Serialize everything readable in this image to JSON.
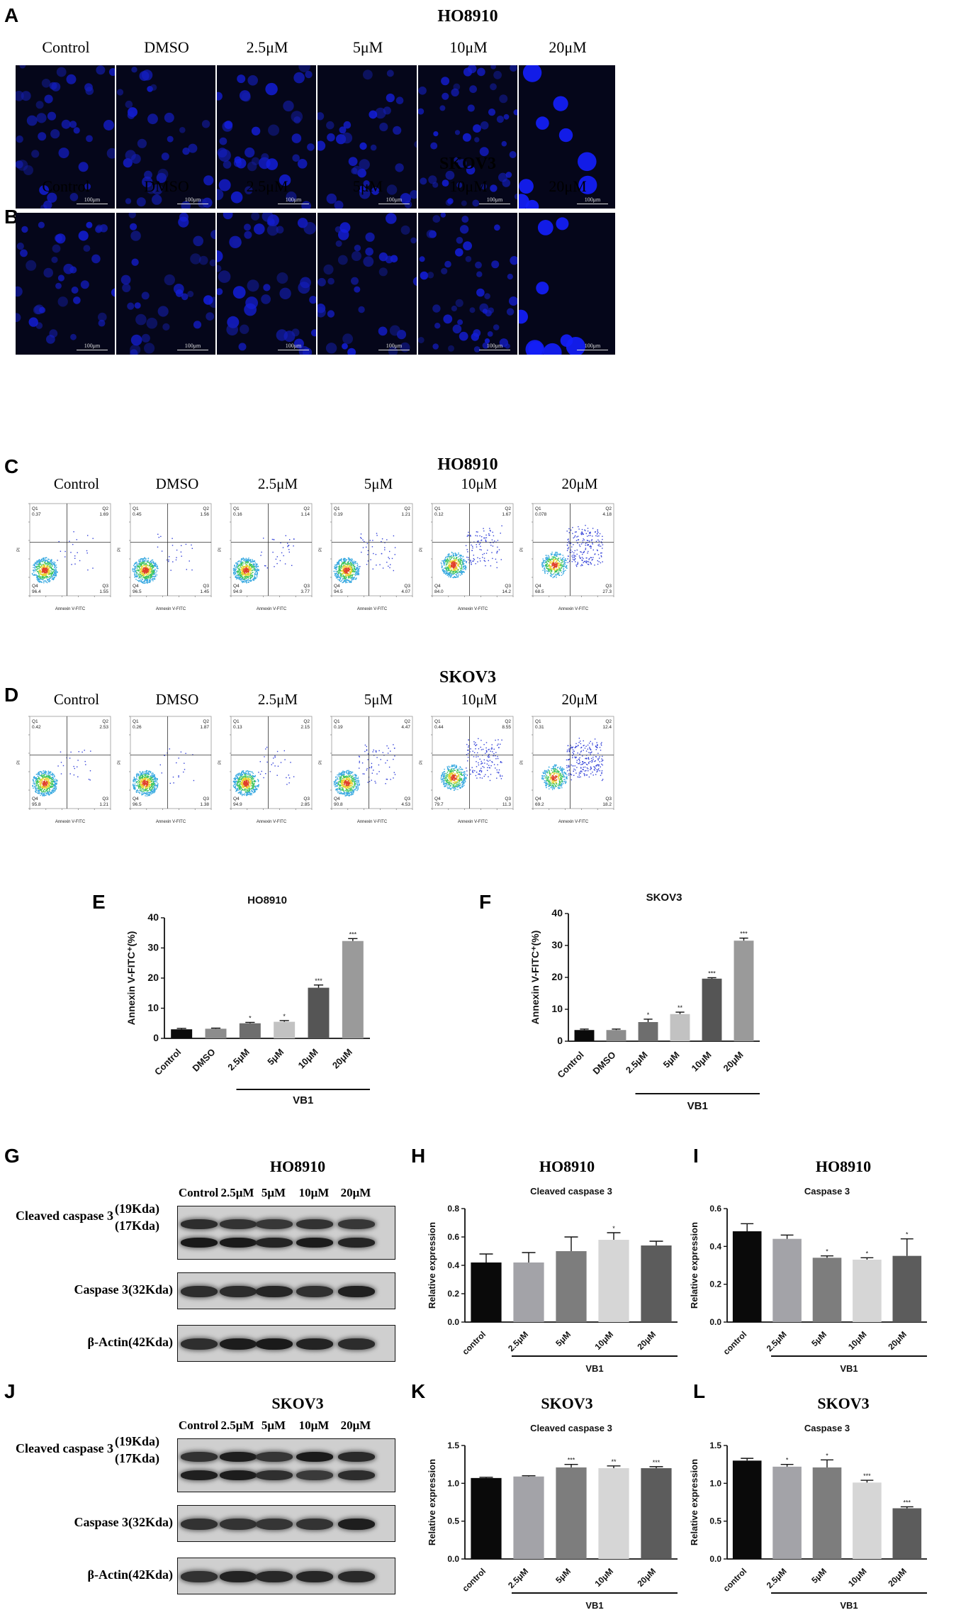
{
  "panels": {
    "A": {
      "letter": "A",
      "cell": "HO8910"
    },
    "B": {
      "letter": "B",
      "cell": "SKOV3"
    },
    "C": {
      "letter": "C",
      "cell": "HO8910"
    },
    "D": {
      "letter": "D",
      "cell": "SKOV3"
    },
    "E": {
      "letter": "E"
    },
    "F": {
      "letter": "F"
    },
    "G": {
      "letter": "G",
      "cell": "HO8910"
    },
    "H": {
      "letter": "H",
      "cell": "HO8910"
    },
    "I": {
      "letter": "I",
      "cell": "HO8910"
    },
    "J": {
      "letter": "J",
      "cell": "SKOV3"
    },
    "K": {
      "letter": "K",
      "cell": "SKOV3"
    },
    "L": {
      "letter": "L",
      "cell": "SKOV3"
    }
  },
  "conditions": [
    "Control",
    "DMSO",
    "2.5μM",
    "5μM",
    "10μM",
    "20μM"
  ],
  "scale_bar": "100μm",
  "flow": {
    "x_axis": "Annexin V-FITC",
    "y_axis": "PI",
    "quadrants": [
      "Q1",
      "Q2",
      "Q3",
      "Q4"
    ],
    "ho8910": [
      {
        "q1": "0.37",
        "q2": "1.69",
        "q3": "1.55",
        "q4": "96.4"
      },
      {
        "q1": "0.45",
        "q2": "1.56",
        "q3": "1.45",
        "q4": "96.5"
      },
      {
        "q1": "0.16",
        "q2": "1.14",
        "q3": "3.77",
        "q4": "94.9"
      },
      {
        "q1": "0.19",
        "q2": "1.21",
        "q3": "4.07",
        "q4": "94.5"
      },
      {
        "q1": "0.12",
        "q2": "1.67",
        "q3": "14.2",
        "q4": "84.0"
      },
      {
        "q1": "0.078",
        "q2": "4.18",
        "q3": "27.3",
        "q4": "68.5"
      }
    ],
    "skov3": [
      {
        "q1": "0.42",
        "q2": "2.53",
        "q3": "1.21",
        "q4": "95.8"
      },
      {
        "q1": "0.26",
        "q2": "1.87",
        "q3": "1.38",
        "q4": "96.5"
      },
      {
        "q1": "0.13",
        "q2": "2.15",
        "q3": "2.85",
        "q4": "94.9"
      },
      {
        "q1": "0.19",
        "q2": "4.47",
        "q3": "4.53",
        "q4": "90.8"
      },
      {
        "q1": "0.44",
        "q2": "8.55",
        "q3": "11.3",
        "q4": "79.7"
      },
      {
        "q1": "0.31",
        "q2": "12.4",
        "q3": "18.2",
        "q4": "69.2"
      }
    ]
  },
  "western": {
    "ho8910_lanes": [
      "Control",
      "2.5μM",
      "5μM",
      "10μM",
      "20μM"
    ],
    "skov3_lanes": [
      "Control",
      "2.5μM",
      "5μM",
      "10μM",
      "20μM"
    ],
    "rows": [
      {
        "label": "Cleaved caspase 3",
        "sub1": "(19Kda)",
        "sub2": "(17Kda)"
      },
      {
        "label": "Caspase 3(32Kda)"
      },
      {
        "label": "β-Actin(42Kda)"
      }
    ]
  },
  "chart_data": [
    {
      "panel": "E",
      "type": "bar",
      "title": "HO8910",
      "ylabel": "Annexin V-FITC⁺(%)",
      "ylim": [
        0,
        40
      ],
      "yticks": [
        0,
        10,
        20,
        30,
        40
      ],
      "categories": [
        "Control",
        "DMSO",
        "2.5μM",
        "5μM",
        "10μM",
        "20μM"
      ],
      "values": [
        3,
        3.2,
        5,
        5.5,
        16.8,
        32.3
      ],
      "errors": [
        0.3,
        0.2,
        0.3,
        0.4,
        0.9,
        0.8
      ],
      "significance": [
        "",
        "",
        "*",
        "*",
        "***",
        "***"
      ],
      "group_label": "VB1",
      "group_from": 2,
      "colors": [
        "#0a0a0a",
        "#8c8c8c",
        "#6e6e6e",
        "#c2c2c2",
        "#555555",
        "#9a9a9a"
      ]
    },
    {
      "panel": "F",
      "type": "bar",
      "title": "SKOV3",
      "ylabel": "Annexin V-FITC⁺(%)",
      "ylim": [
        0,
        40
      ],
      "yticks": [
        0,
        10,
        20,
        30,
        40
      ],
      "categories": [
        "Control",
        "DMSO",
        "2.5μM",
        "5μM",
        "10μM",
        "20μM"
      ],
      "values": [
        3.5,
        3.5,
        6,
        8.5,
        19.6,
        31.5
      ],
      "errors": [
        0.3,
        0.3,
        0.9,
        0.6,
        0.3,
        0.8
      ],
      "significance": [
        "",
        "",
        "*",
        "**",
        "***",
        "***"
      ],
      "group_label": "VB1",
      "group_from": 2,
      "colors": [
        "#0a0a0a",
        "#8c8c8c",
        "#6e6e6e",
        "#c2c2c2",
        "#555555",
        "#9a9a9a"
      ]
    },
    {
      "panel": "H",
      "type": "bar",
      "title": "Cleaved caspase 3",
      "ylabel": "Relative expression",
      "ylim": [
        0,
        0.8
      ],
      "yticks": [
        0,
        0.2,
        0.4,
        0.6,
        0.8
      ],
      "categories": [
        "control",
        "2.5μM",
        "5μM",
        "10μM",
        "20μM"
      ],
      "values": [
        0.42,
        0.42,
        0.5,
        0.58,
        0.54
      ],
      "errors": [
        0.06,
        0.07,
        0.1,
        0.05,
        0.03
      ],
      "significance": [
        "",
        "",
        "",
        "*",
        ""
      ],
      "group_label": "VB1",
      "group_from": 1,
      "colors": [
        "#0a0a0a",
        "#a3a3a8",
        "#7d7d7d",
        "#d6d6d6",
        "#5c5c5c"
      ]
    },
    {
      "panel": "I",
      "type": "bar",
      "title": "Caspase 3",
      "ylabel": "Relative expression",
      "ylim": [
        0,
        0.6
      ],
      "yticks": [
        0,
        0.2,
        0.4,
        0.6
      ],
      "categories": [
        "control",
        "2.5μM",
        "5μM",
        "10μM",
        "20μM"
      ],
      "values": [
        0.48,
        0.44,
        0.34,
        0.33,
        0.35
      ],
      "errors": [
        0.04,
        0.02,
        0.01,
        0.01,
        0.09
      ],
      "significance": [
        "",
        "",
        "*",
        "*",
        "*"
      ],
      "group_label": "VB1",
      "group_from": 1,
      "colors": [
        "#0a0a0a",
        "#a3a3a8",
        "#7d7d7d",
        "#d6d6d6",
        "#5c5c5c"
      ]
    },
    {
      "panel": "K",
      "type": "bar",
      "title": "Cleaved caspase 3",
      "ylabel": "Relative expression",
      "ylim": [
        0,
        1.5
      ],
      "yticks": [
        0,
        0.5,
        1.0,
        1.5
      ],
      "categories": [
        "control",
        "2.5μM",
        "5μM",
        "10μM",
        "20μM"
      ],
      "values": [
        1.07,
        1.09,
        1.21,
        1.2,
        1.2
      ],
      "errors": [
        0.01,
        0.01,
        0.04,
        0.03,
        0.02
      ],
      "significance": [
        "",
        "",
        "***",
        "**",
        "***"
      ],
      "group_label": "VB1",
      "group_from": 1,
      "colors": [
        "#0a0a0a",
        "#a3a3a8",
        "#7d7d7d",
        "#d6d6d6",
        "#5c5c5c"
      ]
    },
    {
      "panel": "L",
      "type": "bar",
      "title": "Caspase 3",
      "ylabel": "Relative expression",
      "ylim": [
        0,
        1.5
      ],
      "yticks": [
        0,
        0.5,
        1.0,
        1.5
      ],
      "categories": [
        "control",
        "2.5μM",
        "5μM",
        "10μM",
        "20μM"
      ],
      "values": [
        1.3,
        1.22,
        1.21,
        1.01,
        0.67
      ],
      "errors": [
        0.03,
        0.03,
        0.1,
        0.03,
        0.02
      ],
      "significance": [
        "",
        "*",
        "*",
        "***",
        "***"
      ],
      "group_label": "VB1",
      "group_from": 1,
      "colors": [
        "#0a0a0a",
        "#a3a3a8",
        "#7d7d7d",
        "#d6d6d6",
        "#5c5c5c"
      ]
    }
  ]
}
